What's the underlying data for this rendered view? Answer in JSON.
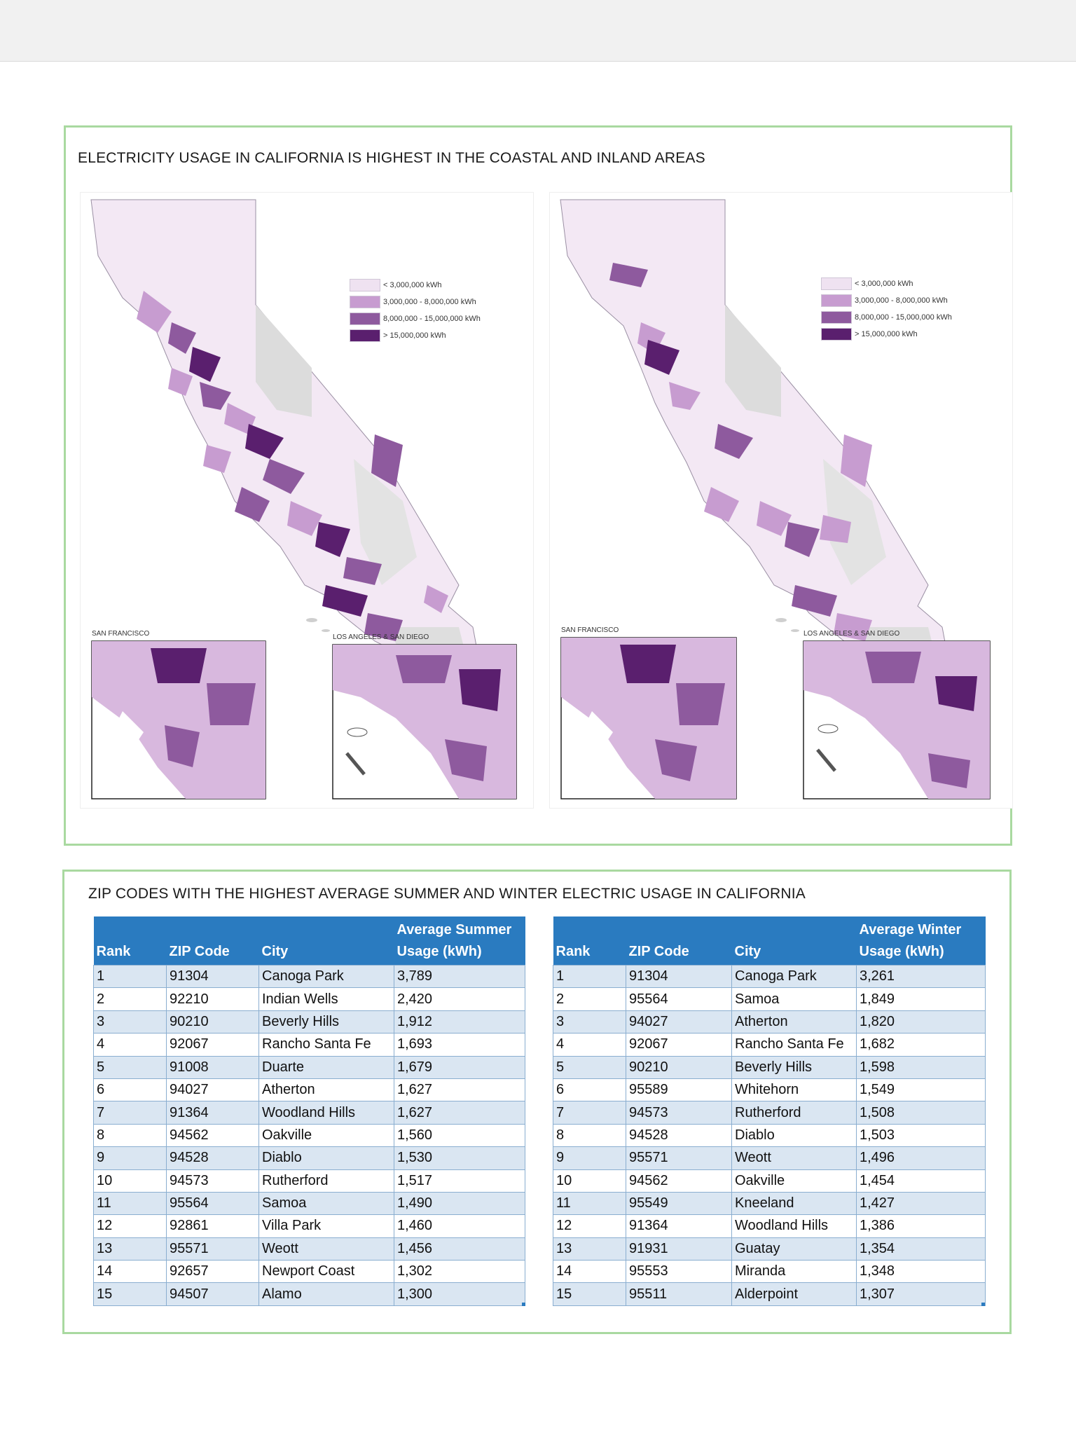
{
  "maps": {
    "title": "ELECTRICITY USAGE IN CALIFORNIA IS HIGHEST IN THE COASTAL AND INLAND AREAS",
    "legend": [
      {
        "label": "< 3,000,000 kWh",
        "color": "#efe2f1"
      },
      {
        "label": "3,000,000 - 8,000,000 kWh",
        "color": "#c79cd0"
      },
      {
        "label": "8,000,000 - 15,000,000 kWh",
        "color": "#8e5a9e"
      },
      {
        "label": "> 15,000,000 kWh",
        "color": "#5a1f6e"
      }
    ],
    "inset_sf_label": "SAN FRANCISCO",
    "inset_la_label": "LOS ANGELES & SAN DIEGO"
  },
  "tables": {
    "title": "ZIP CODES WITH THE HIGHEST AVERAGE SUMMER AND WINTER ELECTRIC USAGE IN CALIFORNIA",
    "summer": {
      "headers": {
        "rank": "Rank",
        "zip": "ZIP Code",
        "city": "City",
        "usage_line1": "Average Summer",
        "usage_line2": "Usage (kWh)"
      },
      "rows": [
        [
          "1",
          "91304",
          "Canoga Park",
          "3,789"
        ],
        [
          "2",
          "92210",
          "Indian Wells",
          "2,420"
        ],
        [
          "3",
          "90210",
          "Beverly Hills",
          "1,912"
        ],
        [
          "4",
          "92067",
          "Rancho Santa Fe",
          "1,693"
        ],
        [
          "5",
          "91008",
          "Duarte",
          "1,679"
        ],
        [
          "6",
          "94027",
          "Atherton",
          "1,627"
        ],
        [
          "7",
          "91364",
          "Woodland Hills",
          "1,627"
        ],
        [
          "8",
          "94562",
          "Oakville",
          "1,560"
        ],
        [
          "9",
          "94528",
          "Diablo",
          "1,530"
        ],
        [
          "10",
          "94573",
          "Rutherford",
          "1,517"
        ],
        [
          "11",
          "95564",
          "Samoa",
          "1,490"
        ],
        [
          "12",
          "92861",
          "Villa Park",
          "1,460"
        ],
        [
          "13",
          "95571",
          "Weott",
          "1,456"
        ],
        [
          "14",
          "92657",
          "Newport Coast",
          "1,302"
        ],
        [
          "15",
          "94507",
          "Alamo",
          "1,300"
        ]
      ]
    },
    "winter": {
      "headers": {
        "rank": "Rank",
        "zip": "ZIP Code",
        "city": "City",
        "usage_line1": "Average Winter",
        "usage_line2": "Usage (kWh)"
      },
      "rows": [
        [
          "1",
          "91304",
          "Canoga Park",
          "3,261"
        ],
        [
          "2",
          "95564",
          "Samoa",
          "1,849"
        ],
        [
          "3",
          "94027",
          "Atherton",
          "1,820"
        ],
        [
          "4",
          "92067",
          "Rancho Santa Fe",
          "1,682"
        ],
        [
          "5",
          "90210",
          "Beverly Hills",
          "1,598"
        ],
        [
          "6",
          "95589",
          "Whitehorn",
          "1,549"
        ],
        [
          "7",
          "94573",
          "Rutherford",
          "1,508"
        ],
        [
          "8",
          "94528",
          "Diablo",
          "1,503"
        ],
        [
          "9",
          "95571",
          "Weott",
          "1,496"
        ],
        [
          "10",
          "94562",
          "Oakville",
          "1,454"
        ],
        [
          "11",
          "95549",
          "Kneeland",
          "1,427"
        ],
        [
          "12",
          "91364",
          "Woodland Hills",
          "1,386"
        ],
        [
          "13",
          "91931",
          "Guatay",
          "1,354"
        ],
        [
          "14",
          "95553",
          "Miranda",
          "1,348"
        ],
        [
          "15",
          "95511",
          "Alderpoint",
          "1,307"
        ]
      ]
    }
  }
}
